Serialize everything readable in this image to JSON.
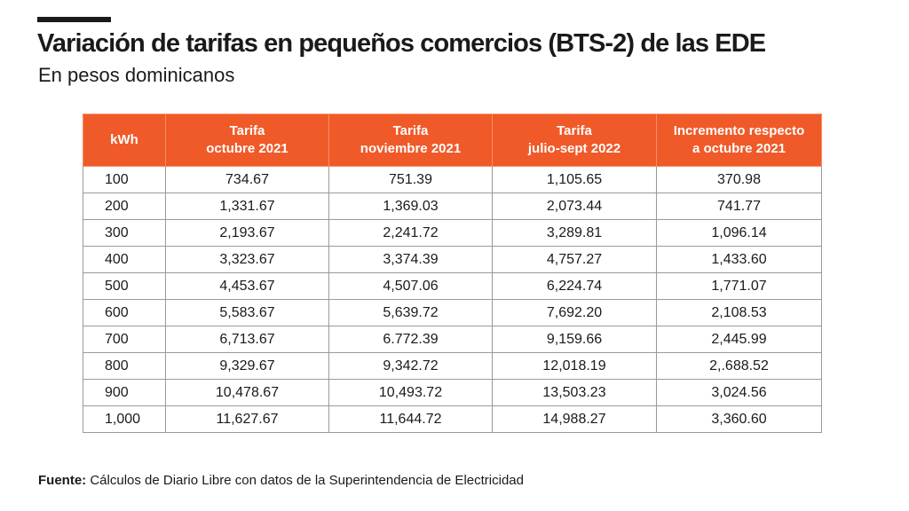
{
  "title": "Variación de tarifas en pequeños comercios (BTS-2) de las EDE",
  "subtitle": "En pesos dominicanos",
  "chart_data": {
    "type": "table",
    "columns": [
      {
        "lines": [
          "kWh"
        ]
      },
      {
        "lines": [
          "Tarifa",
          "octubre 2021"
        ]
      },
      {
        "lines": [
          "Tarifa",
          "noviembre 2021"
        ]
      },
      {
        "lines": [
          "Tarifa",
          "julio-sept 2022"
        ]
      },
      {
        "lines": [
          "Incremento respecto",
          "a octubre 2021"
        ]
      }
    ],
    "rows": [
      [
        "100",
        "734.67",
        "751.39",
        "1,105.65",
        "370.98"
      ],
      [
        "200",
        "1,331.67",
        "1,369.03",
        "2,073.44",
        "741.77"
      ],
      [
        "300",
        "2,193.67",
        "2,241.72",
        "3,289.81",
        "1,096.14"
      ],
      [
        "400",
        "3,323.67",
        "3,374.39",
        "4,757.27",
        "1,433.60"
      ],
      [
        "500",
        "4,453.67",
        "4,507.06",
        "6,224.74",
        "1,771.07"
      ],
      [
        "600",
        "5,583.67",
        "5,639.72",
        "7,692.20",
        "2,108.53"
      ],
      [
        "700",
        "6,713.67",
        "6.772.39",
        "9,159.66",
        "2,445.99"
      ],
      [
        "800",
        "9,329.67",
        "9,342.72",
        "12,018.19",
        "2,.688.52"
      ],
      [
        "900",
        "10,478.67",
        "10,493.72",
        "13,503.23",
        "3,024.56"
      ],
      [
        "1,000",
        "11,627.67",
        "11,644.72",
        "14,988.27",
        "3,360.60"
      ]
    ]
  },
  "source": {
    "label": "Fuente:",
    "text": " Cálculos de Diario Libre con datos de la Superintendencia de Electricidad"
  },
  "colors": {
    "header_bg": "#f05a28",
    "header_text": "#ffffff",
    "grid": "#9a9a9a",
    "text": "#1a1a1a"
  }
}
